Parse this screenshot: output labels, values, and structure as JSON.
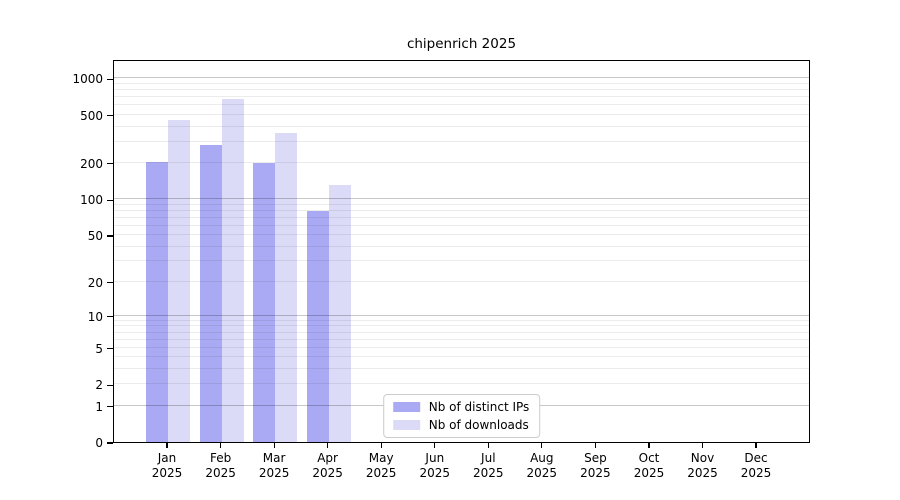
{
  "title": "chipenrich 2025",
  "chart_data": {
    "type": "bar",
    "title": "chipenrich 2025",
    "categories": [
      "Jan",
      "Feb",
      "Mar",
      "Apr",
      "May",
      "Jun",
      "Jul",
      "Aug",
      "Sep",
      "Oct",
      "Nov",
      "Dec"
    ],
    "year_label": "2025",
    "series": [
      {
        "name": "Nb of distinct IPs",
        "color": "#aaaaf4",
        "values": [
          205,
          280,
          198,
          80,
          0,
          0,
          0,
          0,
          0,
          0,
          0,
          0
        ]
      },
      {
        "name": "Nb of downloads",
        "color": "#dbdbf7",
        "values": [
          455,
          675,
          352,
          132,
          0,
          0,
          0,
          0,
          0,
          0,
          0,
          0
        ]
      }
    ],
    "xlabel": "",
    "ylabel": "",
    "yscale": "log1p",
    "ylim": [
      0,
      1445
    ],
    "ytick_values": [
      0,
      1,
      2,
      5,
      10,
      20,
      50,
      100,
      200,
      500,
      1000
    ],
    "ytick_labels": [
      "0",
      "1",
      "2",
      "5",
      "10",
      "20",
      "50",
      "100",
      "200",
      "500",
      "1000"
    ],
    "grid": "horizontal major gridlines at 1,10,100,1000 with faint log minor gridlines",
    "legend_position": "lower center",
    "frame_color": "#000000",
    "background_color": "#ffffff"
  },
  "legend": {
    "items": [
      {
        "label": "Nb of distinct IPs"
      },
      {
        "label": "Nb of downloads"
      }
    ]
  }
}
